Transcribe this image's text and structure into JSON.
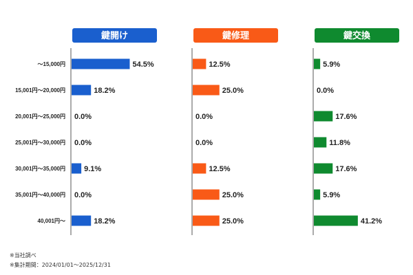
{
  "chart_data": {
    "type": "bar",
    "orientation": "horizontal",
    "categories": [
      "〜15,000円",
      "15,001円〜20,000円",
      "20,001円〜25,000円",
      "25,001円〜30,000円",
      "30,001円〜35,000円",
      "35,001円〜40,000円",
      "40,001円〜"
    ],
    "series": [
      {
        "name": "鍵開け",
        "color": "#1a5fce",
        "values": [
          54.5,
          18.2,
          0.0,
          0.0,
          9.1,
          0.0,
          18.2
        ],
        "labels": [
          "54.5%",
          "18.2%",
          "0.0%",
          "0.0%",
          "9.1%",
          "0.0%",
          "18.2%"
        ]
      },
      {
        "name": "鍵修理",
        "color": "#f95a17",
        "values": [
          12.5,
          25.0,
          0.0,
          0.0,
          12.5,
          25.0,
          25.0
        ],
        "labels": [
          "12.5%",
          "25.0%",
          "0.0%",
          "0.0%",
          "12.5%",
          "25.0%",
          "25.0%"
        ]
      },
      {
        "name": "鍵交換",
        "color": "#0f8a2f",
        "values": [
          5.9,
          0.0,
          17.6,
          11.8,
          17.6,
          5.9,
          41.2
        ],
        "labels": [
          "5.9%",
          "0.0%",
          "17.6%",
          "11.8%",
          "17.6%",
          "5.9%",
          "41.2%"
        ]
      }
    ],
    "xlim": [
      0,
      100
    ],
    "legend": "none",
    "grid": false
  },
  "footnotes": [
    "※当社調べ",
    "※集計期間：2024/01/01〜2025/12/31"
  ]
}
